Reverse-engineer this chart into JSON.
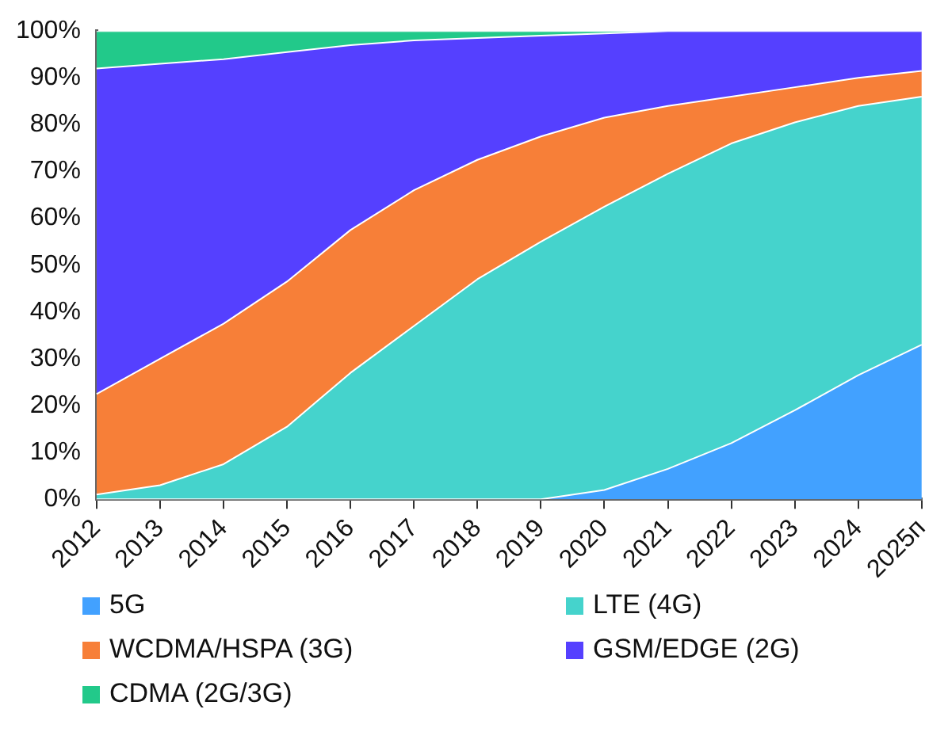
{
  "chart_data": {
    "type": "area",
    "stacked": true,
    "categories": [
      "2012",
      "2013",
      "2014",
      "2015",
      "2016",
      "2017",
      "2018",
      "2019",
      "2020",
      "2021",
      "2022",
      "2023",
      "2024",
      "2025п"
    ],
    "series": [
      {
        "name": "5G",
        "color": "#42a1ff",
        "values": [
          0,
          0,
          0,
          0,
          0,
          0,
          0,
          0,
          2,
          6.5,
          12,
          19,
          26.5,
          33
        ]
      },
      {
        "name": "LTE (4G)",
        "color": "#45d3cc",
        "values": [
          1,
          3,
          7.5,
          15.5,
          27,
          37,
          47,
          55,
          60.5,
          63,
          64,
          61.5,
          57.5,
          53
        ]
      },
      {
        "name": "WCDMA/HSPA (3G)",
        "color": "#f77f38",
        "values": [
          21.5,
          27,
          30,
          31,
          30.5,
          29,
          25.5,
          22.5,
          19,
          14.5,
          10,
          7.5,
          6,
          5.5
        ]
      },
      {
        "name": "GSM/EDGE (2G)",
        "color": "#5540ff",
        "values": [
          69.5,
          63,
          56.5,
          49,
          39.5,
          32,
          26,
          21.5,
          18,
          16,
          14,
          12,
          10,
          8.5
        ]
      },
      {
        "name": "CDMA (2G/3G)",
        "color": "#22c98a",
        "values": [
          8,
          7,
          6,
          4.5,
          3,
          2,
          1.5,
          1,
          0.5,
          0,
          0,
          0,
          0,
          0
        ]
      }
    ],
    "ylim": [
      0,
      100
    ],
    "yticks": [
      {
        "value": 0,
        "label": "0%"
      },
      {
        "value": 10,
        "label": "10%"
      },
      {
        "value": 20,
        "label": "20%"
      },
      {
        "value": 30,
        "label": "30%"
      },
      {
        "value": 40,
        "label": "40%"
      },
      {
        "value": 50,
        "label": "50%"
      },
      {
        "value": 60,
        "label": "60%"
      },
      {
        "value": 70,
        "label": "70%"
      },
      {
        "value": 80,
        "label": "80%"
      },
      {
        "value": 90,
        "label": "90%"
      },
      {
        "value": 100,
        "label": "100%"
      }
    ],
    "grid": false,
    "legend": "bottom",
    "marker": "none"
  }
}
